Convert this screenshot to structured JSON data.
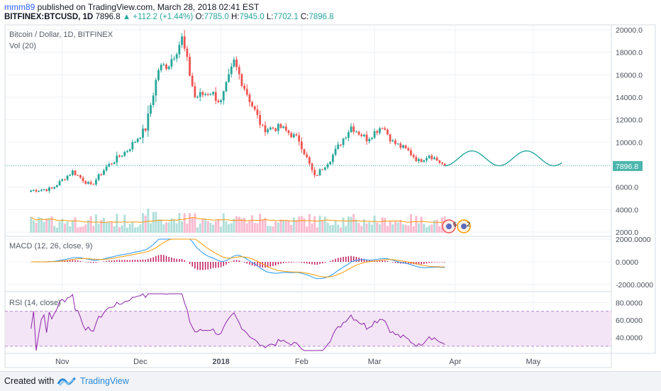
{
  "header": {
    "user": "mmm89",
    "published": " published on TradingView.com, March 28, 2018 02:41 EST",
    "symbol": "BITFINEX:BTCUSD, 1D",
    "last": "7896.8",
    "change_arrow": "▲",
    "change": "+112.2 (+1.44%)",
    "open_label": "O:",
    "open": "7785.0",
    "high_label": "H:",
    "high": "7945.0",
    "low_label": "L:",
    "low": "7702.1",
    "close_label": "C:",
    "close": "7896.8"
  },
  "footer": {
    "created_with": "Created with",
    "brand": "TradingView"
  },
  "colors": {
    "up": "#26a69a",
    "down": "#ef5350",
    "volume_up": "#b2dfdb",
    "volume_down": "#f8bbd0",
    "projection": "#1aa39a",
    "macd_line": "#2196f3",
    "signal_line": "#ff9800",
    "histogram": "#c2185b",
    "rsi_line": "#8e24aa",
    "rsi_band": "#f3e5f5",
    "grid": "#eef1f5",
    "last_price_badge": "#4db6ac"
  },
  "chart_data": [
    {
      "type": "candlestick",
      "title": "Bitcoin / Dollar, 1D, BITFINEX",
      "volume_label": "Vol (20)",
      "last_price_label": "7896.8",
      "x_ticks": [
        "Nov",
        "Dec",
        "2018",
        "Feb",
        "Mar",
        "Apr",
        "May"
      ],
      "y_ticks": [
        "20000.0",
        "18000.0",
        "16000.0",
        "14000.0",
        "12000.0",
        "10000.0",
        "8000.0",
        "6000.0",
        "4000.0",
        "2000.0"
      ],
      "ylim": [
        2000,
        20000
      ],
      "price_path_close": [
        {
          "date": "2017-10-20",
          "close": 5700
        },
        {
          "date": "2017-10-28",
          "close": 5850
        },
        {
          "date": "2017-11-05",
          "close": 7400
        },
        {
          "date": "2017-11-12",
          "close": 6100
        },
        {
          "date": "2017-11-18",
          "close": 7800
        },
        {
          "date": "2017-11-26",
          "close": 9300
        },
        {
          "date": "2017-12-03",
          "close": 11200
        },
        {
          "date": "2017-12-08",
          "close": 16500
        },
        {
          "date": "2017-12-12",
          "close": 17000
        },
        {
          "date": "2017-12-17",
          "close": 19200
        },
        {
          "date": "2017-12-22",
          "close": 14000
        },
        {
          "date": "2017-12-28",
          "close": 14500
        },
        {
          "date": "2018-01-01",
          "close": 13500
        },
        {
          "date": "2018-01-06",
          "close": 17100
        },
        {
          "date": "2018-01-12",
          "close": 13800
        },
        {
          "date": "2018-01-17",
          "close": 11200
        },
        {
          "date": "2018-01-24",
          "close": 11300
        },
        {
          "date": "2018-01-31",
          "close": 10200
        },
        {
          "date": "2018-02-06",
          "close": 6900
        },
        {
          "date": "2018-02-12",
          "close": 8500
        },
        {
          "date": "2018-02-20",
          "close": 11400
        },
        {
          "date": "2018-02-26",
          "close": 10300
        },
        {
          "date": "2018-03-04",
          "close": 11500
        },
        {
          "date": "2018-03-08",
          "close": 10000
        },
        {
          "date": "2018-03-14",
          "close": 9200
        },
        {
          "date": "2018-03-18",
          "close": 8300
        },
        {
          "date": "2018-03-22",
          "close": 8900
        },
        {
          "date": "2018-03-28",
          "close": 7896.8
        }
      ],
      "volume_ylim": [
        0,
        20000
      ]
    },
    {
      "type": "line",
      "title": "MACD (12, 26, close, 9)",
      "y_ticks": [
        "2000.0000",
        "0.0000",
        "-2000.0000"
      ],
      "ylim": [
        -2000,
        2000
      ]
    },
    {
      "type": "line",
      "title": "RSI (14, close)",
      "y_ticks": [
        "80.0000",
        "60.0000",
        "40.0000"
      ],
      "ylim": [
        25,
        90
      ],
      "bands": [
        30,
        70
      ]
    }
  ]
}
